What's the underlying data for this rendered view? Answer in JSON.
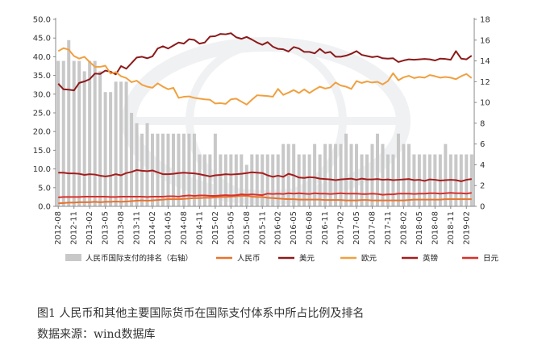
{
  "chart_data": {
    "type": "bar+line",
    "categories": [
      "2012-08",
      "2012-09",
      "2012-10",
      "2012-11",
      "2012-12",
      "2013-01",
      "2013-02",
      "2013-03",
      "2013-04",
      "2013-05",
      "2013-06",
      "2013-07",
      "2013-08",
      "2013-09",
      "2013-10",
      "2013-11",
      "2013-12",
      "2014-01",
      "2014-02",
      "2014-03",
      "2014-04",
      "2014-05",
      "2014-06",
      "2014-07",
      "2014-08",
      "2014-09",
      "2014-10",
      "2014-11",
      "2014-12",
      "2015-01",
      "2015-02",
      "2015-03",
      "2015-04",
      "2015-05",
      "2015-06",
      "2015-07",
      "2015-08",
      "2015-09",
      "2015-10",
      "2015-11",
      "2015-12",
      "2016-01",
      "2016-02",
      "2016-03",
      "2016-04",
      "2016-05",
      "2016-06",
      "2016-07",
      "2016-08",
      "2016-09",
      "2016-10",
      "2016-11",
      "2016-12",
      "2017-01",
      "2017-02",
      "2017-03",
      "2017-04",
      "2017-05",
      "2017-06",
      "2017-07",
      "2017-08",
      "2017-09",
      "2017-10",
      "2017-11",
      "2017-12",
      "2018-01",
      "2018-02",
      "2018-03",
      "2018-04",
      "2018-05",
      "2018-06",
      "2018-07",
      "2018-08",
      "2018-09",
      "2018-10",
      "2018-11",
      "2018-12",
      "2019-01",
      "2019-02",
      "2019-03"
    ],
    "tick_labels": [
      "2012-08",
      "2012-11",
      "2013-02",
      "2013-05",
      "2013-08",
      "2013-11",
      "2014-02",
      "2014-05",
      "2014-08",
      "2014-11",
      "2015-02",
      "2015-05",
      "2015-08",
      "2015-11",
      "2016-02",
      "2016-05",
      "2016-08",
      "2016-11",
      "2017-02",
      "2017-05",
      "2017-08",
      "2017-11",
      "2018-02",
      "2018-05",
      "2018-08",
      "2018-11",
      "2019-02"
    ],
    "y_left": {
      "min": 0,
      "max": 50,
      "step": 5,
      "tick_labels": [
        "0.0",
        "5.0",
        "10.0",
        "15.0",
        "20.0",
        "25.0",
        "30.0",
        "35.0",
        "40.0",
        "45.0",
        "50.0"
      ]
    },
    "y_right": {
      "min": 0,
      "max": 18,
      "step": 2,
      "tick_labels": [
        "0",
        "2",
        "4",
        "6",
        "8",
        "10",
        "12",
        "14",
        "16",
        "18"
      ]
    },
    "legend_position": "bottom",
    "grid": false,
    "bar_series": {
      "name": "人民币国际支付的排名（右轴）",
      "axis": "right",
      "color": "#c8c8c8",
      "values": [
        14,
        14,
        16,
        14,
        14,
        13,
        14,
        14,
        13,
        11,
        11,
        12,
        12,
        12,
        9,
        8,
        7,
        8,
        7,
        7,
        7,
        7,
        7,
        7,
        7,
        7,
        7,
        5,
        5,
        5,
        7,
        5,
        5,
        5,
        5,
        5,
        4,
        5,
        5,
        5,
        5,
        5,
        5,
        6,
        6,
        6,
        5,
        5,
        5,
        6,
        5,
        6,
        6,
        6,
        6,
        7,
        6,
        6,
        5,
        5,
        6,
        7,
        6,
        5,
        5,
        7,
        6,
        6,
        5,
        5,
        5,
        5,
        5,
        5,
        6,
        5,
        5,
        5,
        5,
        5
      ]
    },
    "series": [
      {
        "name": "人民币",
        "axis": "left",
        "color": "#e8732d",
        "values": [
          0.8,
          0.9,
          1.0,
          1.0,
          1.1,
          1.1,
          1.1,
          1.2,
          1.1,
          1.2,
          1.2,
          1.3,
          1.2,
          1.3,
          1.4,
          1.5,
          1.6,
          1.5,
          1.6,
          1.7,
          1.8,
          1.9,
          1.9,
          1.9,
          2.0,
          2.1,
          2.2,
          2.2,
          2.3,
          2.3,
          2.4,
          2.5,
          2.5,
          2.6,
          2.7,
          2.8,
          2.8,
          2.6,
          2.5,
          2.5,
          2.3,
          2.2,
          2.1,
          2.0,
          1.9,
          1.9,
          1.8,
          1.8,
          1.8,
          1.8,
          1.8,
          1.7,
          1.7,
          1.7,
          1.7,
          1.6,
          1.6,
          1.6,
          1.7,
          1.7,
          1.6,
          1.6,
          1.6,
          1.6,
          1.6,
          1.6,
          1.6,
          1.7,
          1.8,
          1.8,
          1.8,
          1.8,
          1.8,
          1.8,
          1.9,
          1.9,
          1.9,
          1.9,
          1.9,
          1.9
        ]
      },
      {
        "name": "美元",
        "axis": "left",
        "color": "#8b1a1a",
        "values": [
          32.8,
          31.3,
          31.2,
          31.0,
          33.0,
          33.4,
          34.0,
          35.5,
          35.4,
          36.3,
          36.0,
          35.3,
          37.5,
          36.8,
          38.3,
          39.8,
          40.0,
          39.6,
          40.1,
          42.2,
          42.8,
          42.2,
          43.0,
          43.8,
          43.5,
          44.7,
          44.5,
          43.5,
          43.8,
          45.4,
          45.5,
          46.1,
          46.0,
          46.3,
          45.2,
          44.8,
          45.3,
          44.6,
          43.8,
          43.2,
          43.9,
          42.7,
          42.1,
          42.0,
          41.4,
          42.6,
          42.2,
          41.3,
          41.3,
          40.9,
          42.1,
          41.0,
          41.3,
          40.0,
          40.0,
          40.3,
          40.8,
          41.5,
          40.5,
          40.2,
          39.9,
          40.1,
          39.6,
          39.5,
          39.6,
          38.6,
          39.0,
          39.3,
          39.2,
          39.3,
          39.4,
          39.3,
          39.0,
          39.5,
          39.4,
          39.2,
          41.5,
          39.5,
          39.3,
          40.3
        ]
      },
      {
        "name": "欧元",
        "axis": "left",
        "color": "#f0a040",
        "values": [
          41.5,
          42.3,
          41.9,
          40.2,
          39.5,
          40.0,
          38.6,
          37.3,
          37.3,
          37.6,
          35.5,
          35.9,
          34.8,
          34.3,
          33.2,
          33.6,
          32.5,
          32.0,
          31.7,
          32.9,
          32.0,
          31.3,
          31.7,
          29.0,
          29.3,
          29.4,
          29.0,
          28.8,
          28.6,
          28.5,
          27.5,
          27.6,
          27.4,
          28.6,
          28.8,
          28.0,
          27.2,
          28.5,
          29.7,
          29.6,
          29.5,
          29.3,
          31.4,
          29.8,
          30.4,
          31.1,
          30.3,
          31.3,
          30.3,
          31.2,
          32.0,
          31.5,
          31.8,
          33.1,
          32.3,
          32.0,
          31.4,
          33.5,
          33.0,
          33.4,
          33.1,
          33.3,
          32.6,
          33.5,
          35.6,
          33.7,
          34.5,
          34.9,
          34.3,
          34.6,
          34.4,
          35.1,
          34.8,
          34.4,
          34.6,
          34.4,
          34.0,
          34.8,
          35.4,
          34.3
        ]
      },
      {
        "name": "英镑",
        "axis": "left",
        "color": "#a51c1c",
        "values": [
          9.0,
          9.0,
          8.8,
          8.8,
          8.7,
          8.4,
          8.6,
          8.5,
          8.2,
          8.0,
          8.2,
          8.6,
          8.3,
          8.9,
          9.2,
          9.7,
          9.5,
          9.4,
          9.6,
          9.1,
          8.6,
          8.6,
          8.7,
          8.9,
          9.0,
          8.9,
          8.8,
          8.6,
          8.3,
          8.0,
          8.3,
          8.4,
          8.6,
          8.5,
          8.6,
          8.7,
          8.9,
          9.1,
          9.0,
          8.9,
          8.3,
          7.9,
          8.2,
          7.9,
          8.7,
          8.3,
          7.7,
          7.6,
          7.8,
          7.7,
          7.4,
          7.3,
          7.2,
          7.0,
          7.2,
          7.3,
          7.4,
          7.1,
          7.4,
          7.2,
          7.2,
          7.3,
          7.1,
          7.2,
          7.0,
          7.1,
          7.2,
          7.3,
          7.0,
          7.1,
          6.8,
          7.2,
          7.1,
          6.9,
          7.0,
          7.1,
          7.0,
          6.7,
          7.1,
          7.3
        ]
      },
      {
        "name": "日元",
        "axis": "left",
        "color": "#d9302a",
        "values": [
          2.4,
          2.5,
          2.5,
          2.5,
          2.5,
          2.6,
          2.6,
          2.6,
          2.6,
          2.6,
          2.5,
          2.5,
          2.6,
          2.6,
          2.6,
          2.6,
          2.6,
          2.5,
          2.6,
          2.6,
          2.6,
          2.7,
          2.7,
          2.6,
          2.8,
          2.9,
          2.8,
          2.9,
          2.9,
          2.8,
          2.8,
          2.9,
          3.0,
          2.9,
          3.0,
          3.2,
          3.1,
          3.2,
          3.1,
          3.0,
          3.4,
          3.3,
          3.4,
          3.3,
          3.5,
          3.4,
          3.5,
          3.4,
          3.3,
          3.5,
          3.4,
          3.4,
          3.3,
          3.4,
          3.5,
          3.4,
          3.4,
          3.4,
          3.3,
          3.3,
          3.4,
          3.3,
          3.1,
          3.2,
          3.2,
          3.4,
          3.4,
          3.4,
          3.3,
          3.4,
          3.4,
          3.5,
          3.5,
          3.4,
          3.5,
          3.6,
          3.5,
          3.5,
          3.4,
          3.6
        ]
      }
    ],
    "legend_entries": [
      "人民币国际支付的排名（右轴）",
      "人民币",
      "美元",
      "欧元",
      "英镑",
      "日元"
    ]
  },
  "caption": {
    "title": "图1    人民币和其他主要国际货币在国际支付体系中所占比例及排名",
    "source": "数据来源：wind数据库"
  },
  "colors": {
    "bar": "#c8c8c8",
    "axis": "#888888",
    "watermark": "#eef0f2"
  }
}
